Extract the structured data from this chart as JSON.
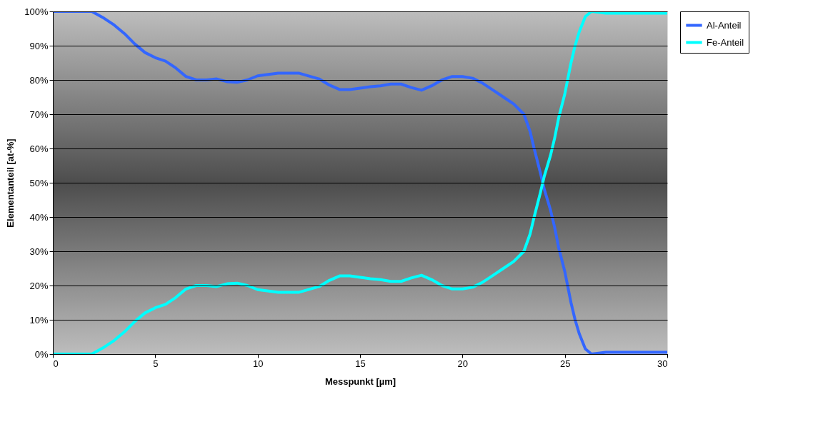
{
  "chart_data": {
    "type": "line",
    "xlabel": "Messpunkt [µm]",
    "ylabel": "Elementanteil [at-%]",
    "x": [
      0,
      1.5,
      1.9,
      2.5,
      3,
      3.5,
      4,
      4.5,
      5,
      5.5,
      6,
      6.5,
      7,
      7.5,
      8,
      8.5,
      9,
      9.5,
      10,
      11,
      12,
      13,
      13.5,
      14,
      14.5,
      15,
      15.5,
      16,
      16.5,
      17,
      17.5,
      18,
      18.5,
      19,
      19.5,
      20,
      20.5,
      21,
      21.5,
      22,
      22.5,
      23,
      23.3,
      23.5,
      23.8,
      24,
      24.3,
      24.5,
      24.7,
      25,
      25.3,
      25.5,
      25.7,
      26,
      26.3,
      27,
      28,
      30
    ],
    "series": [
      {
        "name": "Al-Anteil",
        "color": "#3366ff",
        "values": [
          100,
          100,
          100,
          98,
          96,
          93.5,
          90.5,
          88,
          86.5,
          85.5,
          83.5,
          81,
          80,
          80,
          80.3,
          79.5,
          79.3,
          80,
          81.2,
          82,
          82,
          80.3,
          78.5,
          77.2,
          77.2,
          77.6,
          78,
          78.3,
          78.8,
          78.8,
          77.8,
          77,
          78.3,
          80,
          81,
          81,
          80.5,
          79,
          77,
          75,
          73,
          70,
          65,
          60,
          53,
          48,
          42,
          37,
          31,
          24,
          15,
          10,
          6,
          1.5,
          0,
          0.5,
          0.5,
          0.5
        ]
      },
      {
        "name": "Fe-Anteil",
        "color": "#00ffff",
        "values": [
          0,
          0,
          0,
          2,
          4,
          6.5,
          9.5,
          12,
          13.5,
          14.5,
          16.5,
          19,
          20,
          20,
          19.7,
          20.5,
          20.7,
          20,
          18.8,
          18,
          18,
          19.7,
          21.5,
          22.8,
          22.8,
          22.4,
          22,
          21.7,
          21.2,
          21.2,
          22.2,
          23,
          21.7,
          20,
          19,
          19,
          19.5,
          21,
          23,
          25,
          27,
          30,
          35,
          40,
          47,
          52,
          58,
          63,
          69,
          76,
          85,
          90,
          94,
          98.5,
          100,
          99.5,
          99.5,
          99.5
        ]
      }
    ],
    "xlim": [
      0,
      30
    ],
    "xticks": [
      0,
      5,
      10,
      15,
      20,
      25,
      30
    ],
    "ylim": [
      0,
      100
    ],
    "yticks": [
      {
        "value": 0,
        "label": "0%"
      },
      {
        "value": 10,
        "label": "10%"
      },
      {
        "value": 20,
        "label": "20%"
      },
      {
        "value": 30,
        "label": "30%"
      },
      {
        "value": 40,
        "label": "40%"
      },
      {
        "value": 50,
        "label": "50%"
      },
      {
        "value": 60,
        "label": "60%"
      },
      {
        "value": 70,
        "label": "70%"
      },
      {
        "value": 80,
        "label": "80%"
      },
      {
        "value": 90,
        "label": "90%"
      },
      {
        "value": 100,
        "label": "100%"
      }
    ],
    "grid": "y",
    "legend": "right",
    "marker": "none",
    "line_style": "solid"
  }
}
